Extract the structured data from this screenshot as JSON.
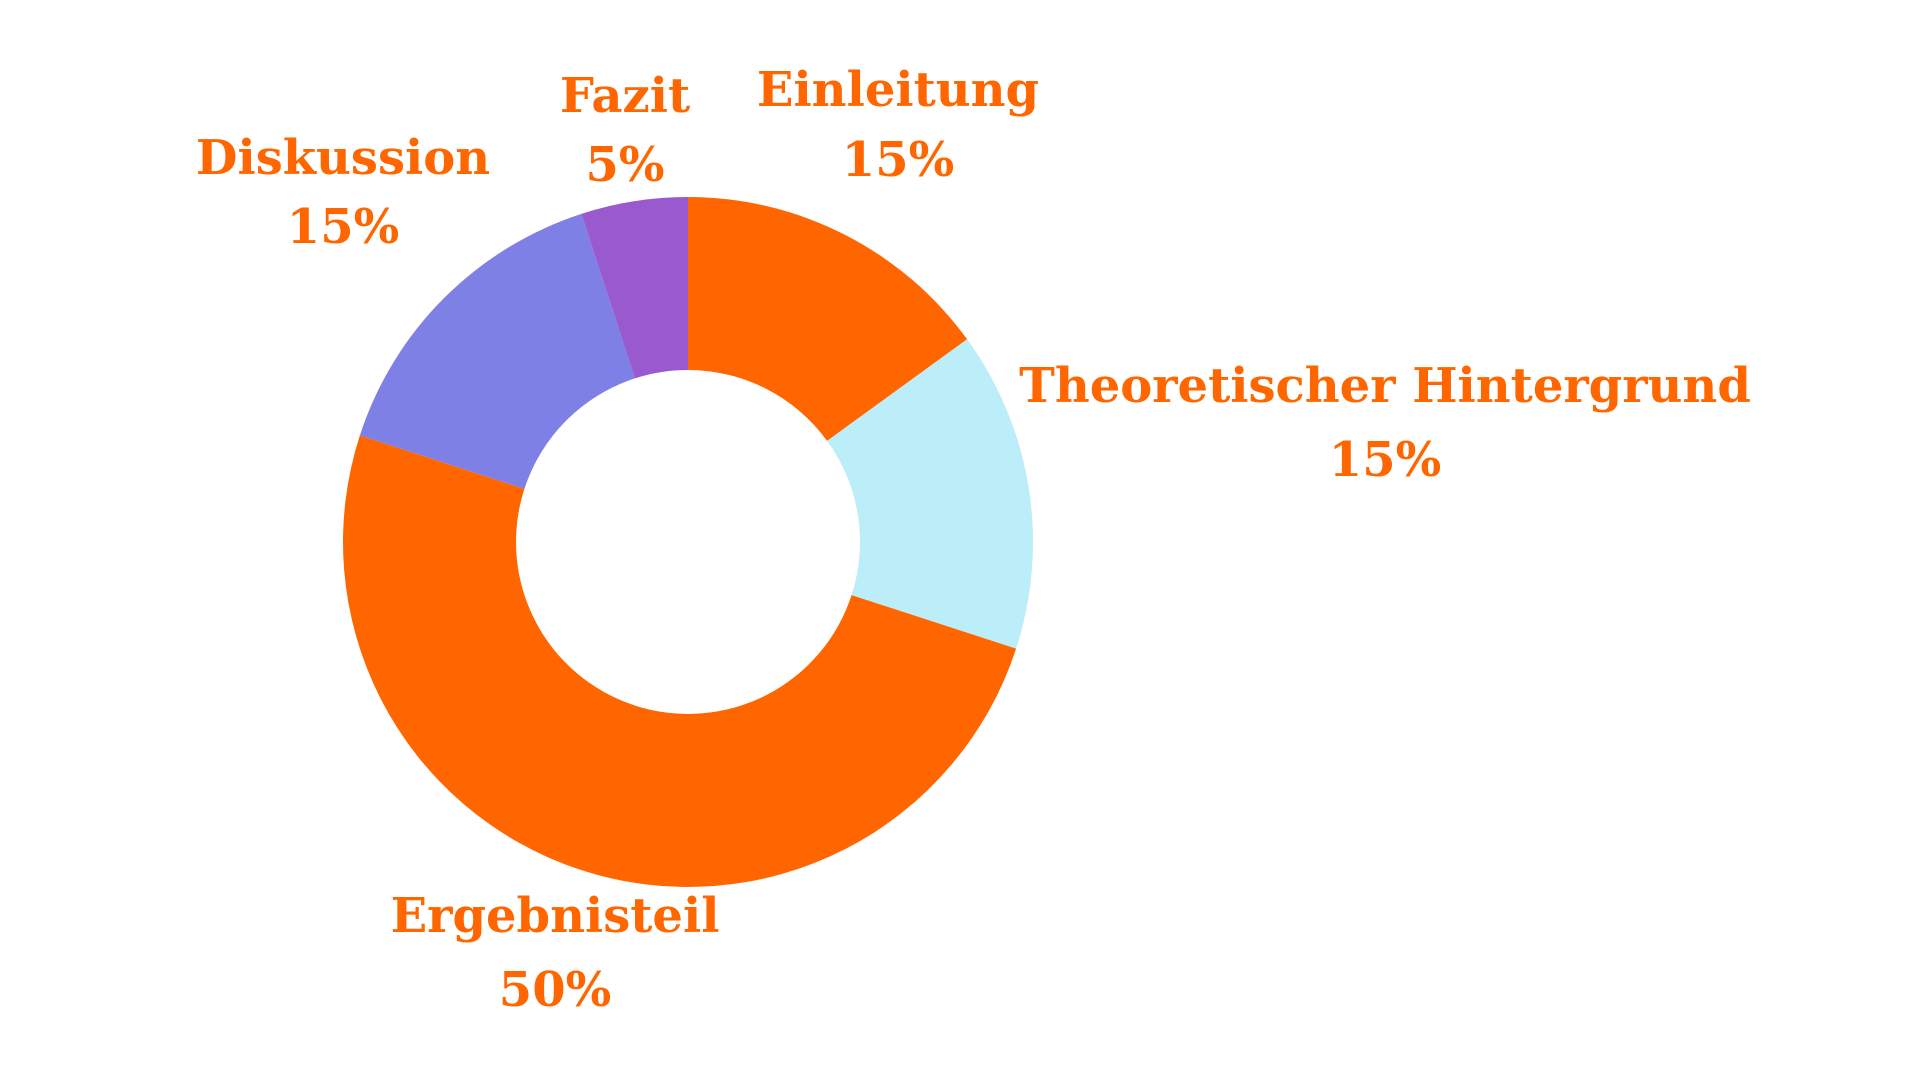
{
  "chart_data": {
    "type": "pie",
    "variant": "donut",
    "start_angle_deg": 0,
    "direction": "clockwise",
    "label_color": "#FF6600",
    "slices": [
      {
        "name": "Einleitung",
        "label": "15%",
        "value": 15,
        "color": "#FF6600"
      },
      {
        "name": "Theoretischer Hintergrund",
        "label": "15%",
        "value": 15,
        "color": "#BBEEF8"
      },
      {
        "name": "Ergebnisteil",
        "label": "50%",
        "value": 50,
        "color": "#FF6600"
      },
      {
        "name": "Diskussion",
        "label": "15%",
        "value": 15,
        "color": "#7F80E6"
      },
      {
        "name": "Fazit",
        "label": "5%",
        "value": 5,
        "color": "#9A5ACF"
      }
    ]
  }
}
